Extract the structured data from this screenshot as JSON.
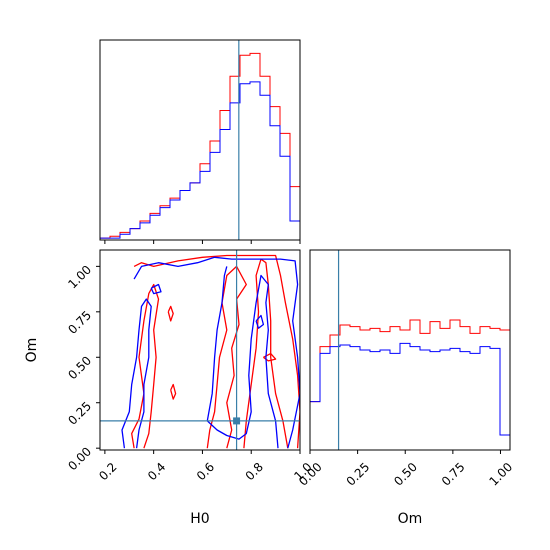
{
  "chart_data": {
    "type": "corner",
    "params": [
      "H0",
      "Om"
    ],
    "truths": {
      "H0": 0.74,
      "Om": 0.15
    },
    "truth_color": "#3a7fa8",
    "series": [
      {
        "color": "#ff0000"
      },
      {
        "color": "#0000ff"
      }
    ],
    "hist_H0": {
      "xlim": [
        0.15,
        1.0
      ],
      "bin_edges": [
        0.15,
        0.1925,
        0.235,
        0.2775,
        0.32,
        0.3625,
        0.405,
        0.4475,
        0.49,
        0.5325,
        0.575,
        0.6175,
        0.66,
        0.7025,
        0.745,
        0.7875,
        0.83,
        0.8725,
        0.915,
        0.9575,
        1.0
      ],
      "red": [
        1,
        2,
        4,
        6,
        10,
        14,
        18,
        22,
        26,
        30,
        40,
        52,
        68,
        86,
        97,
        98,
        86,
        70,
        56,
        28
      ],
      "blue": [
        1,
        1,
        3,
        6,
        9,
        13,
        17,
        21,
        26,
        30,
        36,
        46,
        58,
        72,
        82,
        83,
        76,
        60,
        44,
        10
      ],
      "ymax": 105
    },
    "hist_Om": {
      "xlim": [
        0.0,
        1.05
      ],
      "xticks": [
        "0.00",
        "0.25",
        "0.50",
        "0.75",
        "1.00"
      ],
      "xtick_values": [
        0.0,
        0.25,
        0.5,
        0.75,
        1.0
      ],
      "xlabel": "Om",
      "bin_edges": [
        0.0,
        0.0525,
        0.105,
        0.1575,
        0.21,
        0.2625,
        0.315,
        0.3675,
        0.42,
        0.4725,
        0.525,
        0.5775,
        0.63,
        0.6825,
        0.735,
        0.7875,
        0.84,
        0.8925,
        0.945,
        0.9975,
        1.05
      ],
      "red": [
        29,
        62,
        69,
        75,
        74,
        72,
        73,
        71,
        74,
        72,
        78,
        70,
        77,
        73,
        78,
        74,
        70,
        74,
        73,
        72
      ],
      "blue": [
        29,
        58,
        62,
        63,
        62,
        60,
        59,
        60,
        58,
        64,
        62,
        60,
        59,
        60,
        61,
        59,
        58,
        62,
        61,
        9
      ],
      "ymax": 120
    },
    "joint": {
      "xlim": [
        0.18,
        1.0
      ],
      "ylim": [
        -0.01,
        1.09
      ],
      "xticks": [
        "0.2",
        "0.4",
        "0.6",
        "0.8",
        "1.0"
      ],
      "xtick_values": [
        0.2,
        0.4,
        0.6,
        0.8,
        1.0
      ],
      "yticks": [
        "0.00",
        "0.25",
        "0.50",
        "0.75",
        "1.00"
      ],
      "ytick_values": [
        0.0,
        0.25,
        0.5,
        0.75,
        1.0
      ],
      "xlabel": "H0",
      "ylabel": "Om",
      "contours": {
        "red": [
          [
            [
              0.32,
              1.0
            ],
            [
              0.35,
              1.02
            ],
            [
              0.4,
              1.0
            ],
            [
              0.5,
              1.03
            ],
            [
              0.6,
              1.05
            ],
            [
              0.7,
              1.06
            ],
            [
              0.8,
              1.06
            ],
            [
              0.9,
              1.06
            ],
            [
              0.92,
              0.95
            ],
            [
              0.94,
              0.8
            ],
            [
              0.97,
              0.6
            ],
            [
              0.99,
              0.4
            ],
            [
              1.0,
              0.2
            ],
            [
              0.99,
              0.0
            ]
          ],
          [
            [
              0.95,
              0.0
            ],
            [
              0.93,
              0.15
            ],
            [
              0.9,
              0.3
            ],
            [
              0.88,
              0.5
            ],
            [
              0.88,
              0.7
            ],
            [
              0.87,
              0.9
            ],
            [
              0.86,
              1.02
            ],
            [
              0.84,
              1.04
            ],
            [
              0.82,
              0.95
            ],
            [
              0.83,
              0.75
            ],
            [
              0.82,
              0.55
            ],
            [
              0.8,
              0.35
            ],
            [
              0.78,
              0.15
            ],
            [
              0.77,
              0.0
            ]
          ],
          [
            [
              0.7,
              0.0
            ],
            [
              0.72,
              0.1
            ],
            [
              0.7,
              0.25
            ],
            [
              0.73,
              0.4
            ],
            [
              0.72,
              0.55
            ],
            [
              0.75,
              0.68
            ],
            [
              0.74,
              0.82
            ],
            [
              0.78,
              0.9
            ],
            [
              0.74,
              1.0
            ],
            [
              0.7,
              0.95
            ],
            [
              0.68,
              0.8
            ],
            [
              0.7,
              0.65
            ],
            [
              0.67,
              0.5
            ],
            [
              0.66,
              0.35
            ],
            [
              0.65,
              0.2
            ],
            [
              0.63,
              0.1
            ],
            [
              0.62,
              0.0
            ]
          ],
          [
            [
              0.32,
              0.0
            ],
            [
              0.31,
              0.08
            ],
            [
              0.34,
              0.16
            ],
            [
              0.36,
              0.3
            ],
            [
              0.34,
              0.5
            ],
            [
              0.36,
              0.7
            ],
            [
              0.38,
              0.85
            ],
            [
              0.4,
              0.9
            ],
            [
              0.42,
              0.82
            ],
            [
              0.4,
              0.65
            ],
            [
              0.41,
              0.5
            ],
            [
              0.4,
              0.35
            ],
            [
              0.39,
              0.2
            ],
            [
              0.38,
              0.08
            ],
            [
              0.36,
              0.0
            ]
          ],
          [
            [
              0.46,
              0.75
            ],
            [
              0.47,
              0.78
            ],
            [
              0.48,
              0.74
            ],
            [
              0.47,
              0.7
            ],
            [
              0.46,
              0.75
            ]
          ],
          [
            [
              0.47,
              0.32
            ],
            [
              0.48,
              0.35
            ],
            [
              0.49,
              0.3
            ],
            [
              0.48,
              0.27
            ],
            [
              0.47,
              0.32
            ]
          ],
          [
            [
              0.85,
              0.5
            ],
            [
              0.88,
              0.52
            ],
            [
              0.9,
              0.49
            ],
            [
              0.87,
              0.48
            ],
            [
              0.85,
              0.5
            ]
          ]
        ],
        "blue": [
          [
            [
              0.32,
              0.93
            ],
            [
              0.35,
              1.0
            ],
            [
              0.42,
              1.02
            ],
            [
              0.5,
              1.0
            ],
            [
              0.58,
              1.02
            ],
            [
              0.65,
              1.05
            ],
            [
              0.72,
              1.04
            ],
            [
              0.82,
              1.04
            ],
            [
              0.92,
              1.04
            ],
            [
              0.98,
              1.03
            ],
            [
              0.99,
              0.9
            ],
            [
              0.97,
              0.7
            ],
            [
              0.99,
              0.5
            ],
            [
              1.0,
              0.3
            ],
            [
              0.97,
              0.1
            ],
            [
              0.95,
              0.0
            ]
          ],
          [
            [
              0.91,
              0.0
            ],
            [
              0.9,
              0.15
            ],
            [
              0.87,
              0.3
            ],
            [
              0.86,
              0.5
            ],
            [
              0.87,
              0.65
            ],
            [
              0.86,
              0.8
            ],
            [
              0.87,
              0.9
            ],
            [
              0.84,
              0.95
            ],
            [
              0.82,
              0.8
            ],
            [
              0.8,
              0.6
            ],
            [
              0.79,
              0.4
            ],
            [
              0.8,
              0.2
            ],
            [
              0.78,
              0.08
            ],
            [
              0.75,
              0.05
            ],
            [
              0.7,
              0.07
            ],
            [
              0.66,
              0.1
            ],
            [
              0.62,
              0.15
            ],
            [
              0.64,
              0.3
            ],
            [
              0.65,
              0.5
            ],
            [
              0.66,
              0.65
            ],
            [
              0.68,
              0.8
            ],
            [
              0.69,
              0.95
            ],
            [
              0.7,
              1.0
            ]
          ],
          [
            [
              0.28,
              0.0
            ],
            [
              0.27,
              0.1
            ],
            [
              0.3,
              0.2
            ],
            [
              0.31,
              0.35
            ],
            [
              0.33,
              0.5
            ],
            [
              0.34,
              0.65
            ],
            [
              0.35,
              0.78
            ],
            [
              0.37,
              0.82
            ],
            [
              0.39,
              0.78
            ],
            [
              0.38,
              0.65
            ],
            [
              0.38,
              0.5
            ],
            [
              0.36,
              0.35
            ],
            [
              0.36,
              0.2
            ],
            [
              0.34,
              0.1
            ],
            [
              0.33,
              0.0
            ]
          ],
          [
            [
              0.39,
              0.88
            ],
            [
              0.42,
              0.9
            ],
            [
              0.43,
              0.86
            ],
            [
              0.4,
              0.85
            ],
            [
              0.39,
              0.88
            ]
          ],
          [
            [
              0.82,
              0.7
            ],
            [
              0.84,
              0.73
            ],
            [
              0.85,
              0.68
            ],
            [
              0.83,
              0.66
            ],
            [
              0.82,
              0.7
            ]
          ]
        ]
      }
    }
  }
}
